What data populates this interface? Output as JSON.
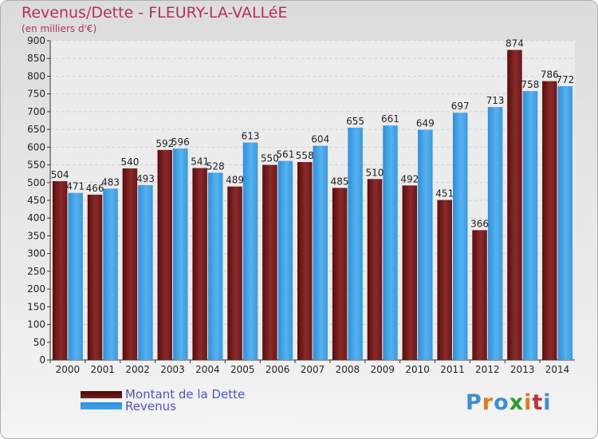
{
  "header": {
    "title": "Revenus/Dette - FLEURY-LA-VALLéE",
    "subtitle": "(en milliers d'€)"
  },
  "legend": {
    "items": [
      {
        "label": "Montant de la Dette",
        "color": "#7a1f1f"
      },
      {
        "label": "Revenus",
        "color": "#3fa0e6"
      }
    ]
  },
  "logo": {
    "text": "Proxiti"
  },
  "chart_data": {
    "type": "bar",
    "title": "Revenus/Dette - FLEURY-LA-VALLéE",
    "ylabel": "(en milliers d'€)",
    "xlabel": "",
    "categories": [
      "2000",
      "2001",
      "2002",
      "2003",
      "2004",
      "2005",
      "2006",
      "2007",
      "2008",
      "2009",
      "2010",
      "2011",
      "2012",
      "2013",
      "2014"
    ],
    "series": [
      {
        "name": "Montant de la Dette",
        "color": "#7a1f1f",
        "values": [
          504,
          466,
          540,
          592,
          541,
          489,
          550,
          558,
          485,
          510,
          492,
          451,
          366,
          874,
          786
        ]
      },
      {
        "name": "Revenus",
        "color": "#3fa0e6",
        "values": [
          471,
          483,
          493,
          596,
          528,
          613,
          561,
          604,
          655,
          661,
          649,
          697,
          713,
          758,
          772
        ]
      }
    ],
    "ylim": [
      0,
      900
    ],
    "yticks": [
      0,
      50,
      100,
      150,
      200,
      250,
      300,
      350,
      400,
      450,
      500,
      550,
      600,
      650,
      700,
      750,
      800,
      850,
      900
    ],
    "grid": true,
    "legend_position": "bottom-left"
  }
}
